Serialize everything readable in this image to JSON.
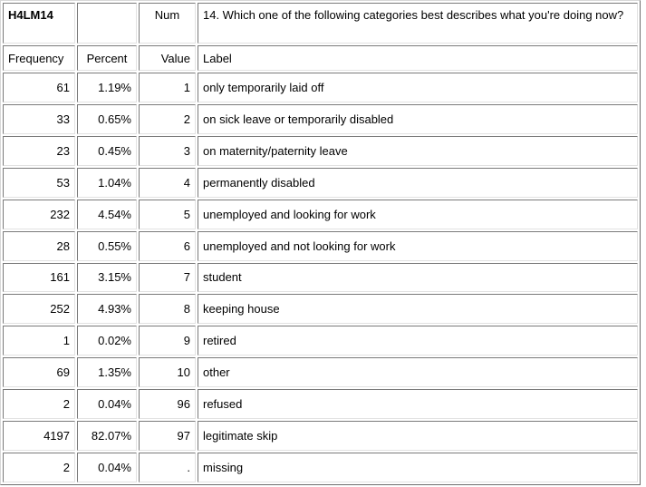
{
  "header": {
    "variable": "H4LM14",
    "num_label": "Num",
    "question": "14. Which one of the following categories best describes what you're doing now?"
  },
  "columns": {
    "frequency": "Frequency",
    "percent": "Percent",
    "value": "Value",
    "label": "Label"
  },
  "rows": [
    {
      "frequency": "61",
      "percent": "1.19%",
      "value": "1",
      "label": "only temporarily laid off"
    },
    {
      "frequency": "33",
      "percent": "0.65%",
      "value": "2",
      "label": "on sick leave or temporarily disabled"
    },
    {
      "frequency": "23",
      "percent": "0.45%",
      "value": "3",
      "label": "on maternity/paternity leave"
    },
    {
      "frequency": "53",
      "percent": "1.04%",
      "value": "4",
      "label": "permanently disabled"
    },
    {
      "frequency": "232",
      "percent": "4.54%",
      "value": "5",
      "label": "unemployed and looking for work"
    },
    {
      "frequency": "28",
      "percent": "0.55%",
      "value": "6",
      "label": "unemployed and not looking for work"
    },
    {
      "frequency": "161",
      "percent": "3.15%",
      "value": "7",
      "label": "student"
    },
    {
      "frequency": "252",
      "percent": "4.93%",
      "value": "8",
      "label": "keeping house"
    },
    {
      "frequency": "1",
      "percent": "0.02%",
      "value": "9",
      "label": "retired"
    },
    {
      "frequency": "69",
      "percent": "1.35%",
      "value": "10",
      "label": "other"
    },
    {
      "frequency": "2",
      "percent": "0.04%",
      "value": "96",
      "label": "refused"
    },
    {
      "frequency": "4197",
      "percent": "82.07%",
      "value": "97",
      "label": "legitimate skip"
    },
    {
      "frequency": "2",
      "percent": "0.04%",
      "value": ".",
      "label": "missing"
    }
  ]
}
